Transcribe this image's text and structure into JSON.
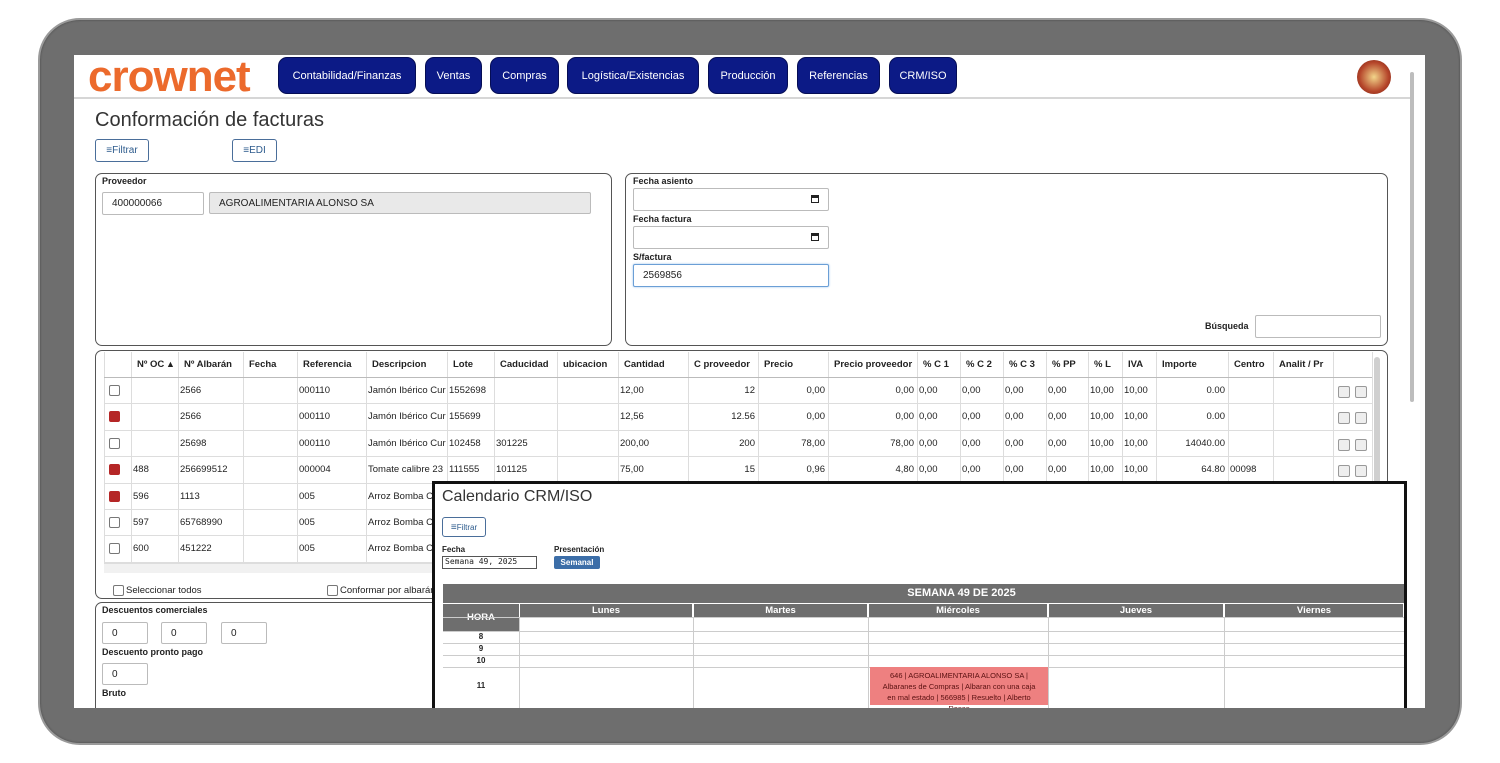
{
  "nav": {
    "logo": "crownet",
    "items": [
      "Contabilidad/Finanzas",
      "Ventas",
      "Compras",
      "Logística/Existencias",
      "Producción",
      "Referencias",
      "CRM/ISO"
    ]
  },
  "header": {
    "title": "Conformación de facturas",
    "buttons": [
      "Filtrar",
      "EDI"
    ]
  },
  "supplier": {
    "label": "Proveedor",
    "code": "400000066",
    "name": "AGROALIMENTARIA ALONSO SA"
  },
  "invoice": {
    "fields": [
      {
        "label": "Fecha asiento"
      },
      {
        "label": "Fecha factura"
      },
      {
        "label": "S/factura",
        "value": "2569856"
      }
    ],
    "search_label": "Búsqueda"
  },
  "table": {
    "columns": [
      "Nº OC",
      "Nº Albarán",
      "Fecha",
      "Referencia",
      "Descripcion",
      "Lote",
      "Caducidad",
      "ubicacion",
      "Cantidad",
      "C proveedor",
      "Precio",
      "Precio proveedor",
      "% C 1",
      "% C 2",
      "% C 3",
      "% PP",
      "% L",
      "IVA",
      "Importe",
      "Centro",
      "Analit / Pr"
    ],
    "rows": [
      {
        "checked": false,
        "cells": [
          null,
          "2566",
          null,
          "000110",
          "Jamón Ibérico Cura",
          "1552698",
          null,
          null,
          "12,00",
          "12",
          "0,00",
          "0,00",
          "0,00",
          "0,00",
          "0,00",
          "0,00",
          "10,00",
          "10,00",
          "0.00",
          null,
          null
        ]
      },
      {
        "checked": true,
        "cells": [
          null,
          "2566",
          null,
          "000110",
          "Jamón Ibérico Cura",
          "155699",
          null,
          null,
          "12,56",
          "12.56",
          "0,00",
          "0,00",
          "0,00",
          "0,00",
          "0,00",
          "0,00",
          "10,00",
          "10,00",
          "0.00",
          null,
          null
        ]
      },
      {
        "checked": false,
        "cells": [
          null,
          "25698",
          null,
          "000110",
          "Jamón Ibérico Cura",
          "102458",
          "301225",
          null,
          "200,00",
          "200",
          "78,00",
          "78,00",
          "0,00",
          "0,00",
          "0,00",
          "0,00",
          "10,00",
          "10,00",
          "14040.00",
          null,
          null
        ]
      },
      {
        "checked": true,
        "cells": [
          "488",
          "256699512",
          null,
          "000004",
          "Tomate calibre 23",
          "111555",
          "101125",
          null,
          "75,00",
          "15",
          "0,96",
          "4,80",
          "0,00",
          "0,00",
          "0,00",
          "0,00",
          "10,00",
          "10,00",
          "64.80",
          "00098",
          null
        ]
      },
      {
        "checked": true,
        "cells": [
          "596",
          "1113",
          null,
          "005",
          "Arroz Bomba Ca"
        ]
      },
      {
        "checked": false,
        "cells": [
          "597",
          "65768990",
          null,
          "005",
          "Arroz Bomba Ca"
        ]
      },
      {
        "checked": false,
        "cells": [
          "600",
          "451222",
          null,
          "005",
          "Arroz Bomba Ca"
        ]
      }
    ]
  },
  "footer": {
    "select_all": "Seleccionar todos",
    "by_delivery": "Conformar por albarán"
  },
  "discounts": {
    "commercial_label": "Descuentos comerciales",
    "commercial": [
      "0",
      "0",
      "0"
    ],
    "prompt_label": "Descuento pronto pago",
    "prompt": "0",
    "gross_label": "Bruto"
  },
  "calendar": {
    "title": "Calendario CRM/ISO",
    "filter": "Filtrar",
    "date_label": "Fecha",
    "date_value": "Semana 49, 2025",
    "view_label": "Presentación",
    "view_value": "Semanal",
    "week_title": "SEMANA 49 DE 2025",
    "hour_label": "HORA",
    "days": [
      "Lunes",
      "Martes",
      "Miércoles",
      "Jueves",
      "Viernes"
    ],
    "hours": [
      "8",
      "9",
      "10",
      "11"
    ],
    "event": {
      "text": "646 | AGROALIMENTARIA ALONSO SA | Albaranes de Compras | Albaran con una caja en mal estado | 566985 | Resuelto | Alberto Rosas"
    }
  }
}
